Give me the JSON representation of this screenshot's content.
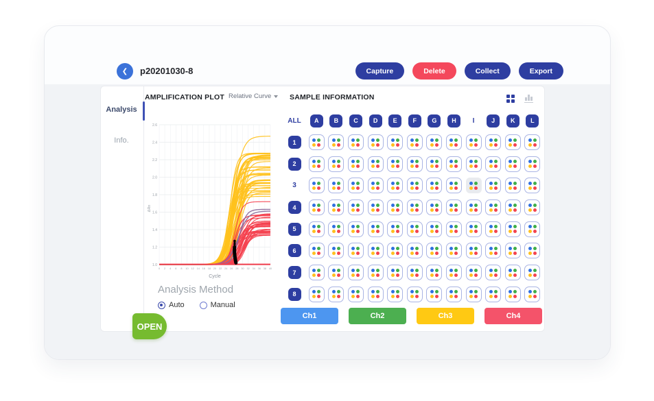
{
  "window": {
    "title": "p20201030-8"
  },
  "header": {
    "back_icon": "❮",
    "buttons": [
      {
        "id": "capture",
        "label": "Capture",
        "color": "#2e3ea1"
      },
      {
        "id": "delete",
        "label": "Delete",
        "color": "#f4485c"
      },
      {
        "id": "collect",
        "label": "Collect",
        "color": "#2e3ea1"
      },
      {
        "id": "export",
        "label": "Export",
        "color": "#2e3ea1"
      }
    ]
  },
  "sidebar": {
    "items": [
      {
        "id": "analysis",
        "label": "Analysis",
        "active": true
      },
      {
        "id": "info",
        "label": "Info.",
        "active": false
      }
    ]
  },
  "plot": {
    "title": "AMPLIFICATION PLOT",
    "curve_selector": "Relative Curve",
    "analysis_method": {
      "label": "Analysis Method",
      "options": [
        {
          "label": "Auto",
          "selected": true
        },
        {
          "label": "Manual",
          "selected": false
        }
      ]
    }
  },
  "chart_data": {
    "type": "line",
    "title": "AMPLIFICATION PLOT",
    "xlabel": "Cycle",
    "ylabel": "ΔRn",
    "xlim": [
      0,
      40
    ],
    "ylim": [
      1.0,
      2.6
    ],
    "xticks": [
      0,
      2,
      4,
      6,
      8,
      10,
      12,
      14,
      16,
      18,
      20,
      22,
      24,
      26,
      28,
      30,
      32,
      34,
      36,
      38,
      40
    ],
    "yticks": [
      1.0,
      1.2,
      1.4,
      1.6,
      1.8,
      2.0,
      2.2,
      2.4,
      2.6
    ],
    "grid": true,
    "baseline_value": 1.0,
    "series_groups": [
      {
        "name": "ch3-yellow-wells",
        "color": "#ffc21e",
        "count": 40,
        "plateau_range": [
          1.78,
          2.28
        ],
        "onset_range": [
          21,
          25
        ],
        "outlier_plateaus": [
          2.47
        ],
        "stroke": 1.2
      },
      {
        "name": "ch4-red-wells",
        "color": "#f4414f",
        "count": 32,
        "plateau_range": [
          1.33,
          1.63
        ],
        "onset_range": [
          23,
          27
        ],
        "outlier_plateaus": [
          1.72
        ],
        "stroke": 1.1
      },
      {
        "name": "purple-well",
        "color": "#8e6e9e",
        "count": 2,
        "plateau_range": [
          1.6,
          1.64
        ],
        "onset_range": [
          24,
          25
        ],
        "outlier_plateaus": [],
        "stroke": 1.4
      }
    ],
    "flat_baseline": {
      "color": "#f4414f",
      "values": [
        1.0,
        1.006
      ]
    },
    "annotation_marker": {
      "x": 27,
      "y_from": 1.02,
      "y_to": 1.27,
      "color": "#000000"
    }
  },
  "samples": {
    "title": "SAMPLE INFORMATION",
    "all_label": "ALL",
    "columns": [
      "A",
      "B",
      "C",
      "D",
      "E",
      "F",
      "G",
      "H",
      "I",
      "J",
      "K",
      "L"
    ],
    "rows": [
      "1",
      "2",
      "3",
      "4",
      "5",
      "6",
      "7",
      "8"
    ],
    "inactive_columns": [
      "I"
    ],
    "inactive_rows": [
      "3"
    ],
    "selected_cell": {
      "row": "3",
      "column": "I"
    },
    "dot_colors": [
      "#2f6fe0",
      "#3fae4a",
      "#ffc020",
      "#f4434f"
    ],
    "channels": [
      {
        "label": "Ch1",
        "color": "#4d96f0"
      },
      {
        "label": "Ch2",
        "color": "#4caf50"
      },
      {
        "label": "Ch3",
        "color": "#ffc913"
      },
      {
        "label": "Ch4",
        "color": "#f4536a"
      }
    ]
  },
  "open_button": {
    "label": "OPEN",
    "color": "#76bb2f"
  }
}
